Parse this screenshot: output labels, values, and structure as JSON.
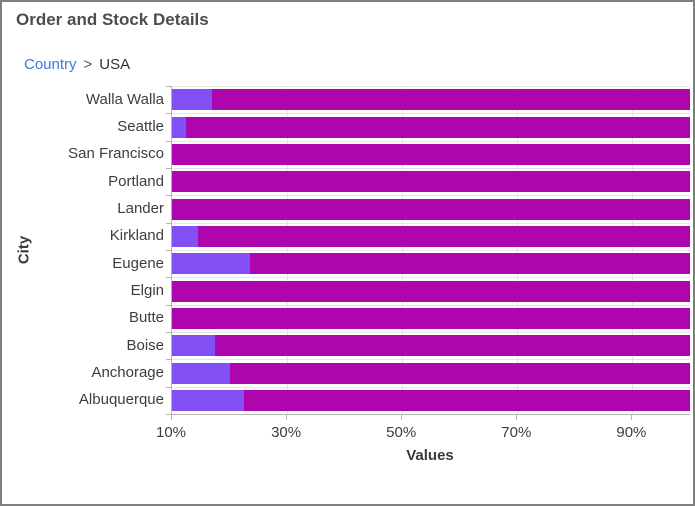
{
  "header": {
    "title": "Order and Stock Details"
  },
  "breadcrumb": {
    "root": "Country",
    "separator": ">",
    "current": "USA"
  },
  "colors": {
    "link_blue": "#3b78e7",
    "violet_series": "#8250f2",
    "magenta_series": "#ac06ac",
    "gridline": "#e4e4e4",
    "axis_line": "#b3b3b3",
    "label_text": "#3d3d3d",
    "title_text": "#4d4d4d",
    "card_border": "#7f7f7f"
  },
  "chart_data": {
    "type": "bar",
    "orientation": "horizontal",
    "stacked_100_percent": true,
    "title": "Order and Stock Details",
    "xlabel": "Values",
    "ylabel": "City",
    "legend": "none",
    "grid": "on",
    "categories": [
      "Walla Walla",
      "Seattle",
      "San Francisco",
      "Portland",
      "Lander",
      "Kirkland",
      "Eugene",
      "Elgin",
      "Butte",
      "Boise",
      "Anchorage",
      "Albuquerque"
    ],
    "series": [
      {
        "name": "violet-segment",
        "color": "#8250f2",
        "note": "segment spans 0% to value; values at or below the 10% axis minimum are not visible",
        "values": [
          17,
          12.5,
          10,
          10,
          10,
          14.5,
          23.5,
          10,
          10,
          17.5,
          20,
          22.5
        ]
      },
      {
        "name": "magenta-segment",
        "color": "#ac06ac",
        "note": "segment spans from violet value to 100%",
        "values": [
          83,
          87.5,
          90,
          90,
          90,
          85.5,
          76.5,
          90,
          90,
          82.5,
          80,
          77.5
        ]
      }
    ],
    "x_axis": {
      "min": 10,
      "max": 100,
      "tick_interval": 20,
      "tick_values": [
        10,
        30,
        50,
        70,
        90
      ],
      "tick_labels": [
        "10%",
        "30%",
        "50%",
        "70%",
        "90%"
      ],
      "gridline_values": [
        30,
        50,
        70,
        90
      ]
    }
  }
}
